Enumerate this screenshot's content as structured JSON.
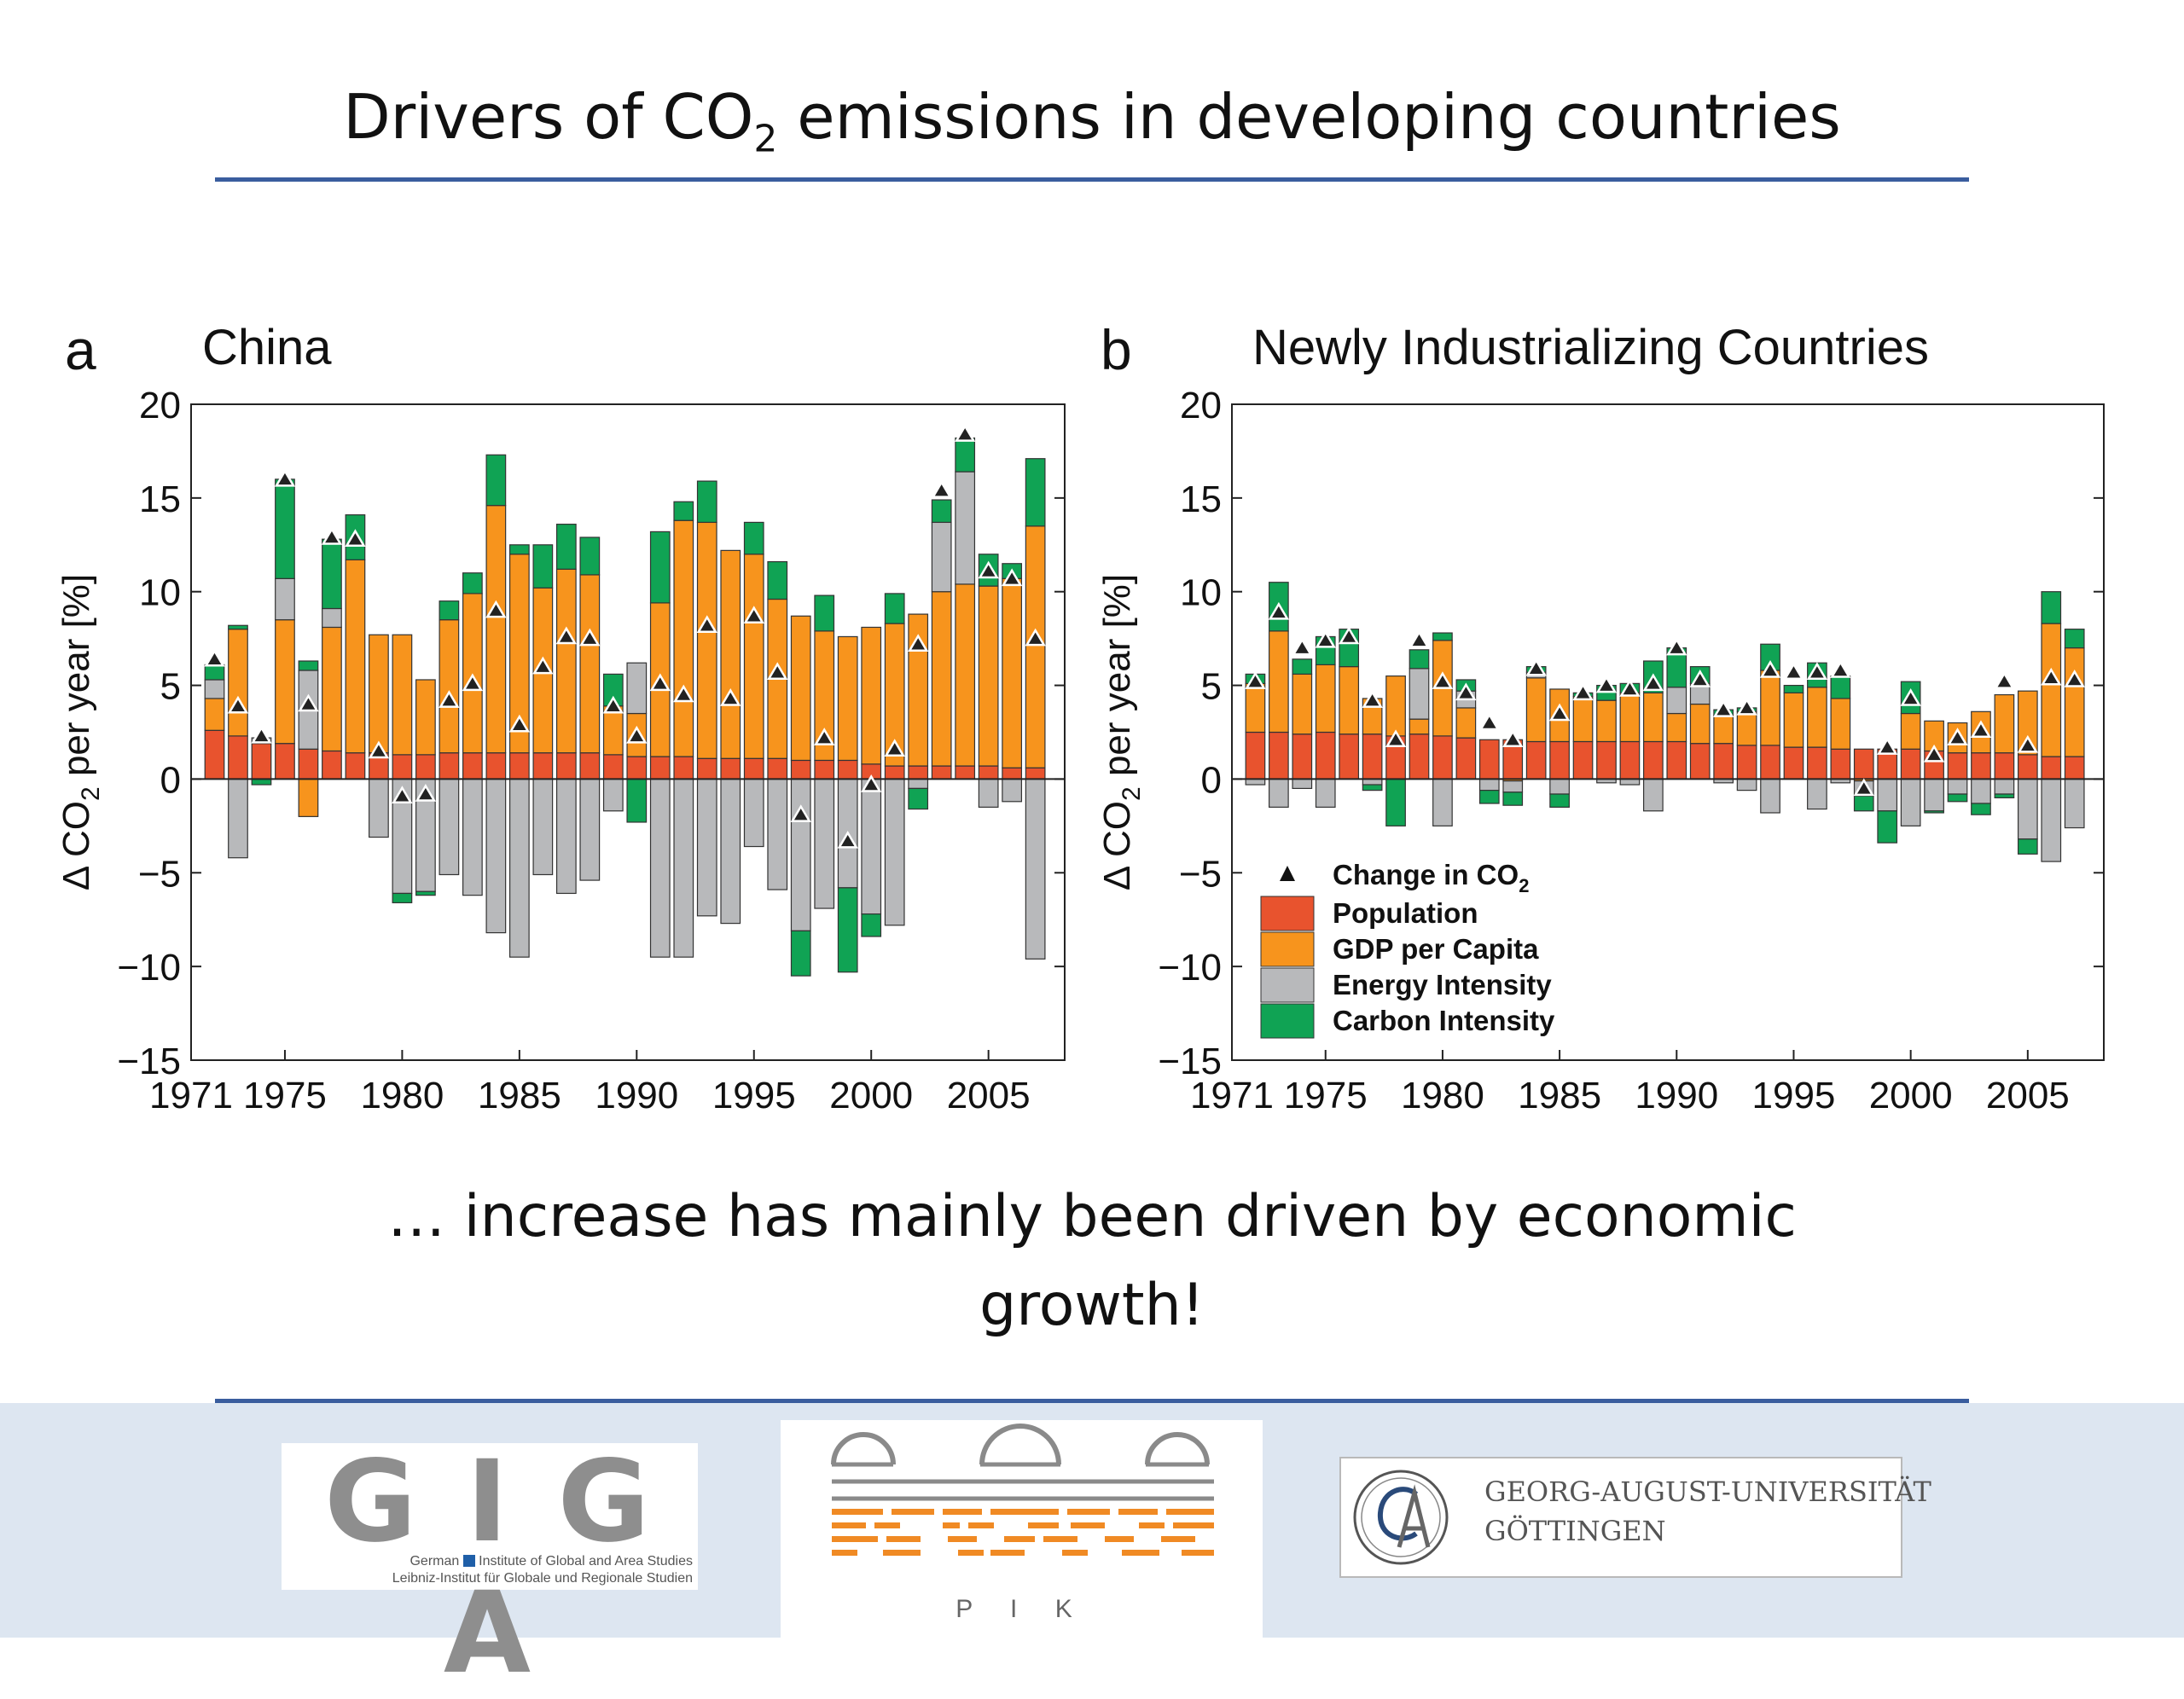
{
  "slide": {
    "title_main": "Drivers of CO",
    "title_sub": "2",
    "title_rest": " emissions in developing countries",
    "caption_line1": "…  increase has mainly been driven by economic",
    "caption_line2": "growth!"
  },
  "logos": {
    "giga_big": "G I G A",
    "giga_line1_a": "German",
    "giga_line1_b": "Institute of Global and Area Studies",
    "giga_line2": "Leibniz-Institut für Globale und Regionale Studien",
    "pik": "P I K",
    "goettingen_line1": "GEORG-AUGUST-UNIVERSITÄT",
    "goettingen_line2": "GÖTTINGEN"
  },
  "colors": {
    "population": "#e8532e",
    "gdp": "#f7941d",
    "energy": "#b8b9bb",
    "carbon": "#10a354",
    "rule": "#3a5d9e",
    "footer": "#dde6f1"
  },
  "chart_data": [
    {
      "type": "bar",
      "panel_letter": "a",
      "title": "China",
      "xlabel": "",
      "ylabel_pre": "Δ CO",
      "ylabel_sub": "2",
      "ylabel_post": " per year [%]",
      "ylim": [
        -15,
        20
      ],
      "yticks": [
        -15,
        -10,
        -5,
        0,
        5,
        10,
        15,
        20
      ],
      "xticks": [
        1971,
        1975,
        1980,
        1985,
        1990,
        1995,
        2000,
        2005
      ],
      "years": [
        1972,
        1973,
        1974,
        1975,
        1976,
        1977,
        1978,
        1979,
        1980,
        1981,
        1982,
        1983,
        1984,
        1985,
        1986,
        1987,
        1988,
        1989,
        1990,
        1991,
        1992,
        1993,
        1994,
        1995,
        1996,
        1997,
        1998,
        1999,
        2000,
        2001,
        2002,
        2003,
        2004,
        2005,
        2006,
        2007
      ],
      "series": [
        {
          "name": "Population",
          "values": [
            2.6,
            2.3,
            1.9,
            1.9,
            1.6,
            1.5,
            1.4,
            1.4,
            1.3,
            1.3,
            1.4,
            1.4,
            1.4,
            1.4,
            1.4,
            1.4,
            1.4,
            1.3,
            1.2,
            1.2,
            1.2,
            1.1,
            1.1,
            1.1,
            1.1,
            1.0,
            1.0,
            1.0,
            0.8,
            0.7,
            0.7,
            0.7,
            0.7,
            0.7,
            0.6,
            0.6
          ]
        },
        {
          "name": "GDP per Capita",
          "values": [
            1.7,
            5.7,
            0,
            6.6,
            -2.0,
            6.6,
            10.3,
            6.3,
            6.4,
            4.0,
            7.1,
            8.5,
            13.2,
            10.6,
            8.8,
            9.8,
            9.5,
            2.6,
            2.3,
            8.2,
            12.6,
            12.6,
            11.1,
            10.9,
            8.5,
            7.7,
            6.9,
            6.6,
            7.3,
            7.6,
            8.1,
            9.3,
            9.7,
            9.6,
            10.1,
            12.9
          ]
        },
        {
          "name": "Energy Intensity",
          "values": [
            1.0,
            -4.2,
            0.3,
            2.2,
            4.2,
            1.0,
            0,
            -3.1,
            -6.1,
            -6.0,
            -5.1,
            -6.2,
            -8.2,
            -9.5,
            -5.1,
            -6.1,
            -5.4,
            -1.7,
            2.7,
            -9.5,
            -9.5,
            -7.3,
            -7.7,
            -3.6,
            -5.9,
            -8.1,
            -6.9,
            -5.8,
            -7.2,
            -7.8,
            -0.5,
            3.7,
            6.0,
            -1.5,
            -1.2,
            -9.6
          ]
        },
        {
          "name": "Carbon Intensity",
          "values": [
            0.8,
            0.2,
            -0.3,
            5.3,
            0.5,
            3.7,
            2.4,
            0,
            -0.5,
            -0.2,
            1.0,
            1.1,
            2.7,
            0.5,
            2.3,
            2.4,
            2.0,
            1.7,
            -2.3,
            3.8,
            1.0,
            2.2,
            0,
            1.7,
            2.0,
            -2.4,
            1.9,
            -4.5,
            -1.2,
            1.6,
            -1.1,
            1.2,
            1.8,
            1.7,
            0.8,
            3.6
          ]
        }
      ],
      "change_values": [
        6.4,
        3.9,
        2.3,
        16.0,
        4.0,
        12.9,
        12.8,
        1.5,
        -0.9,
        -0.8,
        4.2,
        5.1,
        9.0,
        2.9,
        6.0,
        7.6,
        7.5,
        3.9,
        2.3,
        5.1,
        4.5,
        8.2,
        4.3,
        8.7,
        5.7,
        -1.9,
        2.2,
        -3.3,
        -0.3,
        1.6,
        7.2,
        15.4,
        18.4,
        11.1,
        10.7,
        7.5
      ]
    },
    {
      "type": "bar",
      "panel_letter": "b",
      "title": "Newly Industrializing Countries",
      "xlabel": "",
      "ylabel_pre": "Δ CO",
      "ylabel_sub": "2",
      "ylabel_post": " per year [%]",
      "ylim": [
        -15,
        20
      ],
      "yticks": [
        -15,
        -10,
        -5,
        0,
        5,
        10,
        15,
        20
      ],
      "xticks": [
        1971,
        1975,
        1980,
        1985,
        1990,
        1995,
        2000,
        2005
      ],
      "years": [
        1972,
        1973,
        1974,
        1975,
        1976,
        1977,
        1978,
        1979,
        1980,
        1981,
        1982,
        1983,
        1984,
        1985,
        1986,
        1987,
        1988,
        1989,
        1990,
        1991,
        1992,
        1993,
        1994,
        1995,
        1996,
        1997,
        1998,
        1999,
        2000,
        2001,
        2002,
        2003,
        2004,
        2005,
        2006,
        2007
      ],
      "series": [
        {
          "name": "Population",
          "values": [
            2.5,
            2.5,
            2.4,
            2.5,
            2.4,
            2.4,
            2.3,
            2.4,
            2.3,
            2.2,
            2.1,
            2.1,
            2.0,
            2.0,
            2.0,
            2.0,
            2.0,
            2.0,
            2.0,
            1.9,
            1.9,
            1.8,
            1.8,
            1.7,
            1.7,
            1.6,
            1.6,
            1.6,
            1.6,
            1.5,
            1.4,
            1.4,
            1.4,
            1.3,
            1.2,
            1.2
          ]
        },
        {
          "name": "GDP per Capita",
          "values": [
            2.6,
            5.4,
            3.2,
            3.6,
            3.6,
            1.9,
            3.2,
            0.8,
            5.1,
            1.6,
            0,
            -0.1,
            3.4,
            2.8,
            2.4,
            2.2,
            2.6,
            2.6,
            1.5,
            2.1,
            1.5,
            1.8,
            4.0,
            2.9,
            3.2,
            2.7,
            -0.1,
            0,
            1.9,
            1.6,
            1.6,
            2.2,
            3.1,
            3.4,
            7.1,
            5.8
          ]
        },
        {
          "name": "Energy Intensity",
          "values": [
            -0.3,
            -1.5,
            -0.5,
            -1.5,
            0,
            -0.3,
            0,
            2.7,
            -2.5,
            0.9,
            -0.6,
            -0.6,
            0.3,
            -0.8,
            0,
            -0.2,
            -0.3,
            -1.7,
            1.4,
            1.1,
            -0.2,
            -0.6,
            -1.8,
            0,
            -1.6,
            -0.2,
            -0.8,
            -1.7,
            -2.5,
            -1.7,
            -0.8,
            -1.3,
            -0.8,
            -3.2,
            -4.4,
            -2.6
          ]
        },
        {
          "name": "Carbon Intensity",
          "values": [
            0.5,
            2.6,
            0.8,
            1.5,
            2.0,
            -0.3,
            -2.5,
            1.0,
            0.4,
            0.6,
            -0.7,
            -0.7,
            0.3,
            -0.7,
            0.2,
            0.8,
            0.5,
            1.7,
            2.1,
            0.9,
            0.3,
            0.2,
            1.4,
            0.4,
            1.3,
            1.2,
            -0.8,
            -1.7,
            1.7,
            -0.1,
            -0.4,
            -0.6,
            -0.2,
            -0.8,
            1.7,
            1.0
          ]
        }
      ],
      "change_values": [
        5.2,
        8.9,
        7.0,
        7.4,
        7.6,
        4.2,
        2.1,
        7.4,
        5.2,
        4.6,
        3.0,
        2.1,
        5.9,
        3.5,
        4.6,
        5.0,
        4.8,
        5.1,
        7.0,
        5.3,
        3.7,
        3.8,
        5.8,
        5.7,
        5.7,
        5.8,
        -0.5,
        1.7,
        4.3,
        1.3,
        2.2,
        2.6,
        5.2,
        1.8,
        5.4,
        5.3
      ]
    }
  ],
  "legend": {
    "change_pre": "Change in CO",
    "change_sub": "2",
    "items": [
      {
        "label": "Population",
        "color_key": "population"
      },
      {
        "label": "GDP per Capita",
        "color_key": "gdp"
      },
      {
        "label": "Energy Intensity",
        "color_key": "energy"
      },
      {
        "label": "Carbon Intensity",
        "color_key": "carbon"
      }
    ]
  }
}
